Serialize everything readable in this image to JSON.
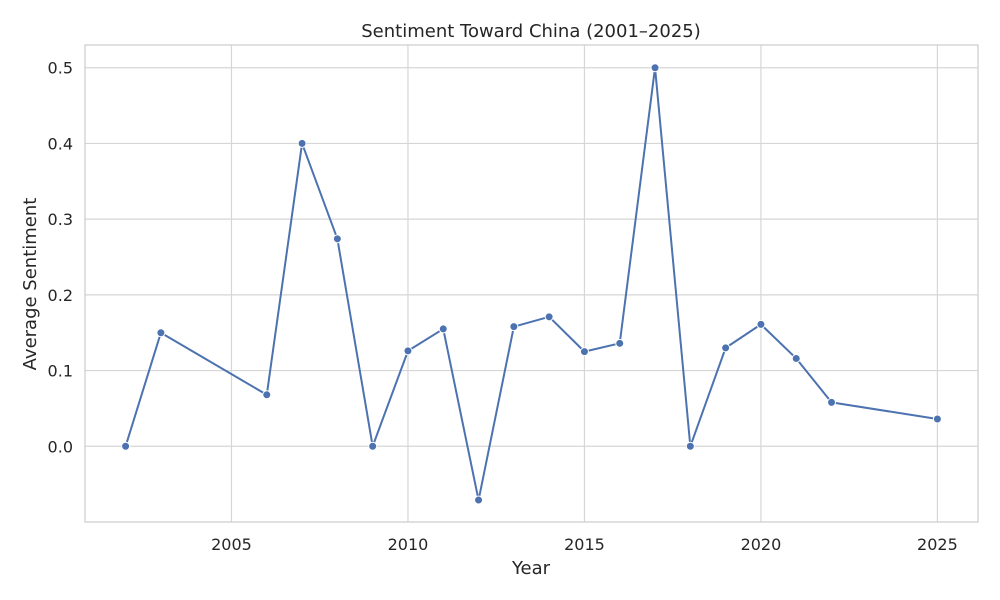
{
  "chart_data": {
    "type": "line",
    "title": "Sentiment Toward China (2001–2025)",
    "xlabel": "Year",
    "ylabel": "Average Sentiment",
    "xlim": [
      2000.85,
      2026.15
    ],
    "ylim": [
      -0.1,
      0.53
    ],
    "xticks": [
      2005,
      2010,
      2015,
      2020,
      2025
    ],
    "yticks": [
      0.0,
      0.1,
      0.2,
      0.3,
      0.4,
      0.5
    ],
    "ytick_labels": [
      "0.0",
      "0.1",
      "0.2",
      "0.3",
      "0.4",
      "0.5"
    ],
    "grid": true,
    "legend": "none",
    "series": [
      {
        "color": "#4c72b0",
        "marker": "circle",
        "x": [
          2002,
          2003,
          2006,
          2007,
          2008,
          2009,
          2010,
          2011,
          2012,
          2013,
          2014,
          2015,
          2016,
          2017,
          2018,
          2019,
          2020,
          2021,
          2022,
          2025
        ],
        "y": [
          0.0,
          0.15,
          0.068,
          0.4,
          0.274,
          0.0,
          0.126,
          0.155,
          -0.071,
          0.158,
          0.171,
          0.125,
          0.136,
          0.5,
          0.0,
          0.13,
          0.161,
          0.116,
          0.058,
          0.036
        ]
      }
    ]
  }
}
